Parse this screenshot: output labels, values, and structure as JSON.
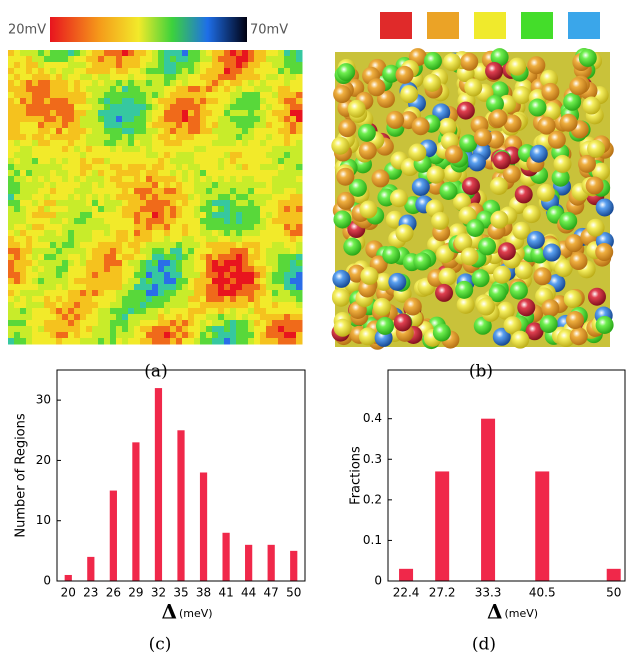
{
  "panels": {
    "colorbar_min": "20mV",
    "colorbar_max": "70mV",
    "labels": [
      "(a)",
      "(b)",
      "(c)",
      "(d)"
    ]
  },
  "chart_data": [
    {
      "type": "bar",
      "ylabel": "Number of Regions",
      "xlabel": "Δ",
      "xlabel_unit": "(meV)",
      "categories": [
        "20",
        "23",
        "26",
        "29",
        "32",
        "35",
        "38",
        "41",
        "44",
        "47",
        "50"
      ],
      "values": [
        1,
        4,
        15,
        23,
        32,
        25,
        18,
        8,
        6,
        6,
        5
      ],
      "color": "#f0284a",
      "ylim": [
        0,
        35
      ],
      "yticks": [
        0,
        10,
        20,
        30
      ]
    },
    {
      "type": "bar",
      "ylabel": "Fractions",
      "xlabel": "Δ",
      "xlabel_unit": "(meV)",
      "x": [
        22.4,
        27.2,
        33.3,
        40.5,
        50
      ],
      "values": [
        0.03,
        0.27,
        0.4,
        0.27,
        0.03
      ],
      "color": "#f0284a",
      "xlim": [
        20,
        51.5
      ],
      "xticks": [
        22.4,
        27.2,
        33.3,
        40.5,
        50
      ],
      "ylim": [
        0,
        0.52
      ],
      "yticks": [
        0,
        0.1,
        0.2,
        0.3,
        0.4
      ]
    }
  ]
}
